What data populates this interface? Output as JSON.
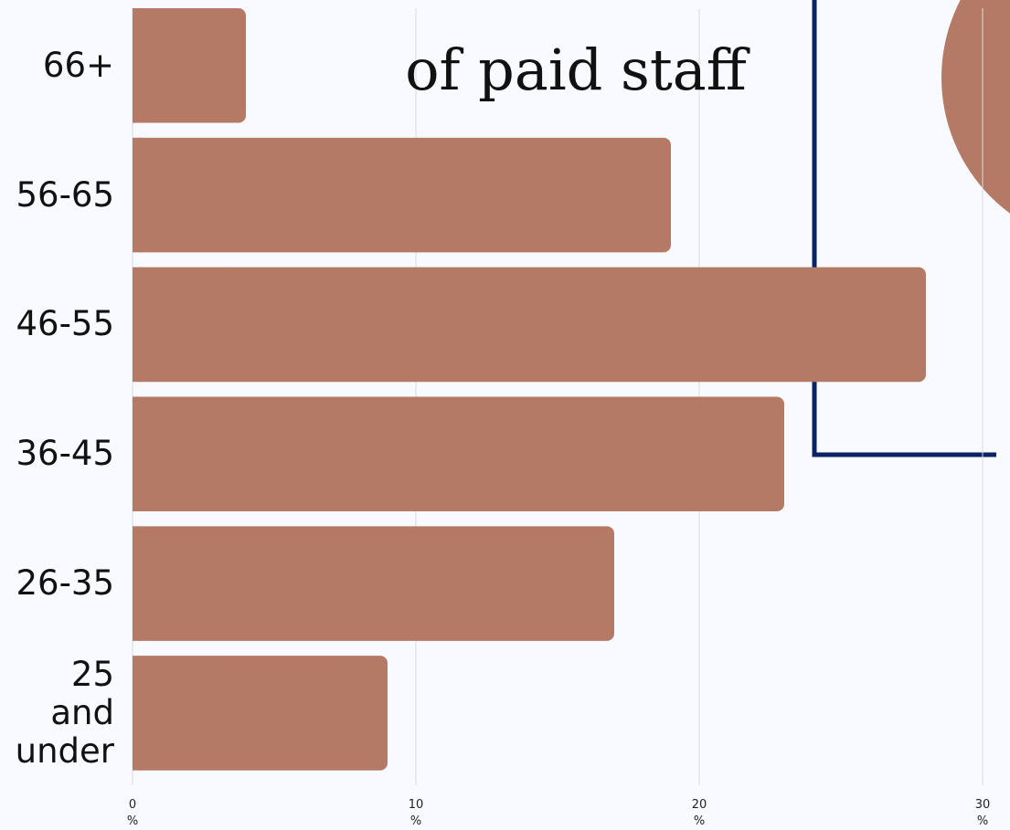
{
  "chart_data": {
    "type": "bar",
    "orientation": "horizontal",
    "title": "of paid staff",
    "categories": [
      "66+",
      "56-65",
      "46-55",
      "36-45",
      "26-35",
      "25 and under"
    ],
    "values": [
      4,
      19,
      28,
      23,
      17,
      9
    ],
    "color": "#b57a66",
    "xlim": [
      0,
      30
    ],
    "xticks": [
      {
        "value": 0,
        "label": "0\n%"
      },
      {
        "value": 10,
        "label": "10\n%"
      },
      {
        "value": 20,
        "label": "20\n%"
      },
      {
        "value": 30,
        "label": "30\n%"
      }
    ],
    "grid": true
  }
}
